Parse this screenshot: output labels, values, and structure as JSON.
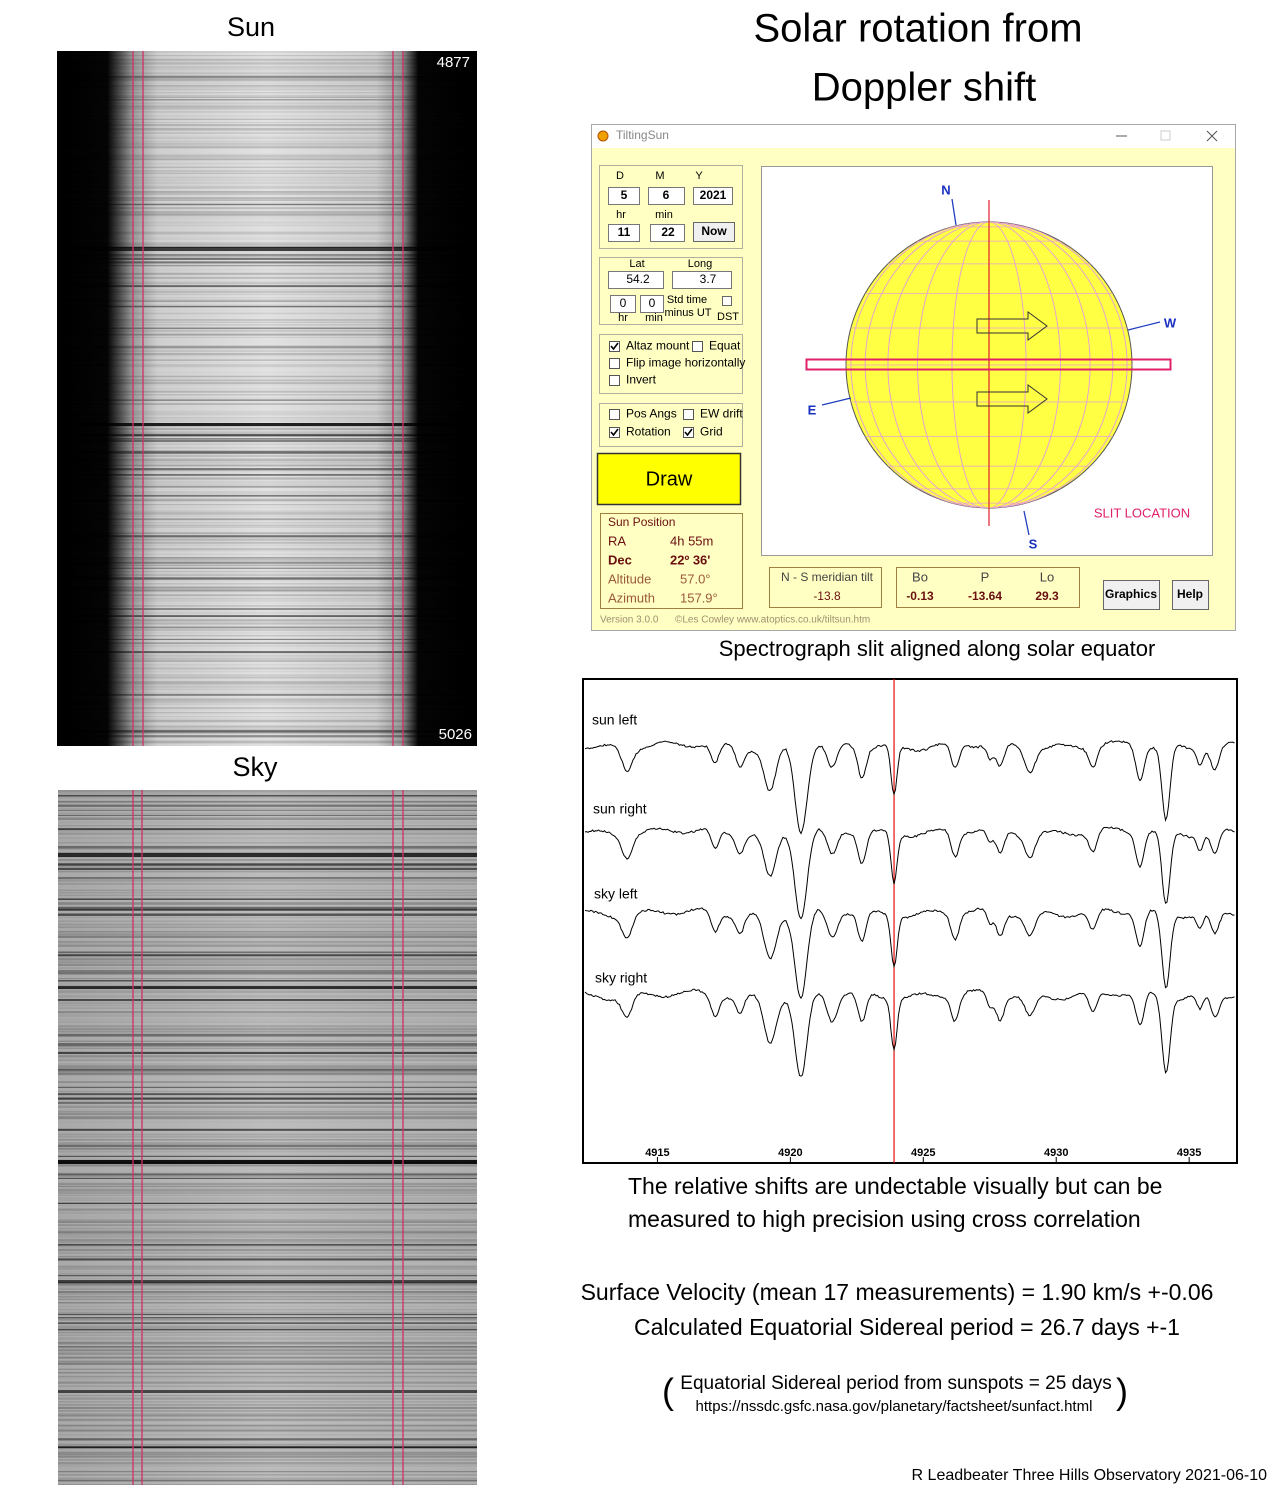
{
  "left_panel": {
    "sun_label": "Sun",
    "sun_top_label": "4877",
    "sun_bottom_label": "5026",
    "sky_label": "Sky"
  },
  "header": {
    "title_line1": "Solar rotation from",
    "title_line2": "Doppler shift"
  },
  "window": {
    "title": "TiltingSun",
    "date_labels": [
      "D",
      "M",
      "Y"
    ],
    "date_values": [
      "5",
      "6",
      "2021"
    ],
    "time_labels": [
      "hr",
      "min"
    ],
    "time_values": [
      "11",
      "22"
    ],
    "now_button": "Now",
    "location_labels": [
      "Lat",
      "Long"
    ],
    "location_values": [
      "54.2",
      "3.7"
    ],
    "offset_values": [
      "0",
      "0"
    ],
    "offset_labels": [
      "hr",
      "min"
    ],
    "std_time_label": [
      "Std time",
      "minus UT"
    ],
    "dst_label": "DST",
    "options": [
      {
        "label": "Altaz mount",
        "checked": true
      },
      {
        "label": "Equat",
        "checked": false
      },
      {
        "label": "Flip image horizontally",
        "checked": false
      },
      {
        "label": "Invert",
        "checked": false
      }
    ],
    "overlays": [
      {
        "label": "Pos Angs",
        "checked": false
      },
      {
        "label": "EW drift",
        "checked": false
      },
      {
        "label": "Rotation",
        "checked": true
      },
      {
        "label": "Grid",
        "checked": true
      }
    ],
    "draw_button": "Draw",
    "sun_position": {
      "title": "Sun Position",
      "rows": [
        [
          "RA",
          "4h 55m"
        ],
        [
          "Dec",
          "22º 36'"
        ],
        [
          "Altitude",
          "57.0°"
        ],
        [
          "Azimuth",
          "157.9°"
        ]
      ]
    },
    "version": "Version 3.0.0",
    "credit": "©Les Cowley www.atoptics.co.uk/tiltsun.htm",
    "tilt": {
      "label": "N - S meridian tilt",
      "value": "-13.8"
    },
    "angles": {
      "labels": [
        "Bo",
        "P",
        "Lo"
      ],
      "values": [
        "-0.13",
        "-13.64",
        "29.3"
      ]
    },
    "buttons": [
      "Graphics",
      "Help"
    ],
    "compass": [
      "N",
      "W",
      "E",
      "S"
    ],
    "slit_label": "SLIT LOCATION"
  },
  "caption": "Spectrograph slit aligned along solar equator",
  "plot": {
    "xlim": [
      4912.2,
      4936.8
    ],
    "xticks": [
      4915,
      4920,
      4925,
      4930,
      4935
    ],
    "marker": 4923.9,
    "traces": [
      "sun left",
      "sun right",
      "sky left",
      "sky right"
    ]
  },
  "notes": [
    "The relative shifts are undectable visually but can be",
    "measured to high precision using cross correlation"
  ],
  "results": [
    "Surface Velocity (mean 17 measurements) = 1.90 km/s +-0.06",
    "Calculated Equatorial Sidereal period = 26.7 days +-1"
  ],
  "reference": {
    "text": "Equatorial Sidereal period from sunspots = 25 days",
    "url": "https://nssdc.gsfc.nasa.gov/planetary/factsheet/sunfact.html"
  },
  "footer": "R Leadbeater Three Hills Observatory  2021-06-10"
}
